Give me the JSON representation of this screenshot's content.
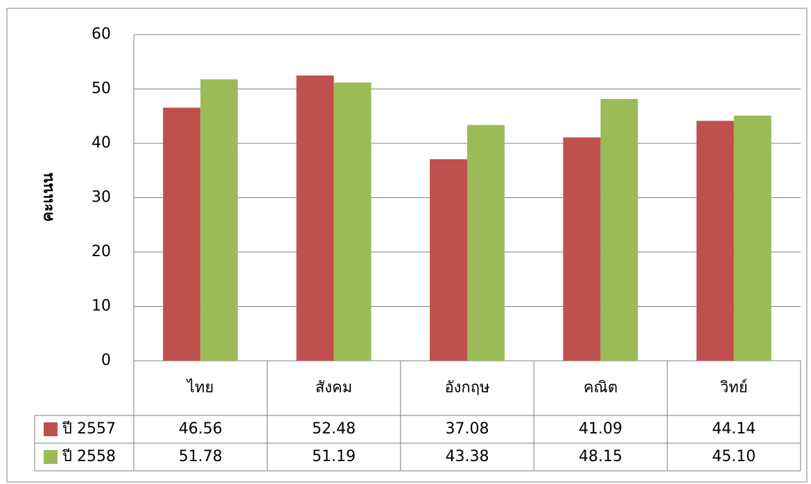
{
  "chart_data": {
    "type": "bar",
    "y_label": "คะแนน",
    "categories": [
      "ไทย",
      "สังคม",
      "อังกฤษ",
      "คณิต",
      "วิทย์"
    ],
    "series": [
      {
        "name": "ปี 2557",
        "color": "#c0504d",
        "values": [
          46.56,
          52.48,
          37.08,
          41.09,
          44.14
        ],
        "value_labels": [
          "46.56",
          "52.48",
          "37.08",
          "41.09",
          "44.14"
        ]
      },
      {
        "name": "ปี 2558",
        "color": "#9bbb59",
        "values": [
          51.78,
          51.19,
          43.38,
          48.15,
          45.1
        ],
        "value_labels": [
          "51.78",
          "51.19",
          "43.38",
          "48.15",
          "45.10"
        ]
      }
    ],
    "ylim": [
      0,
      60
    ],
    "yticks": [
      0,
      10,
      20,
      30,
      40,
      50,
      60
    ],
    "grid": true
  }
}
